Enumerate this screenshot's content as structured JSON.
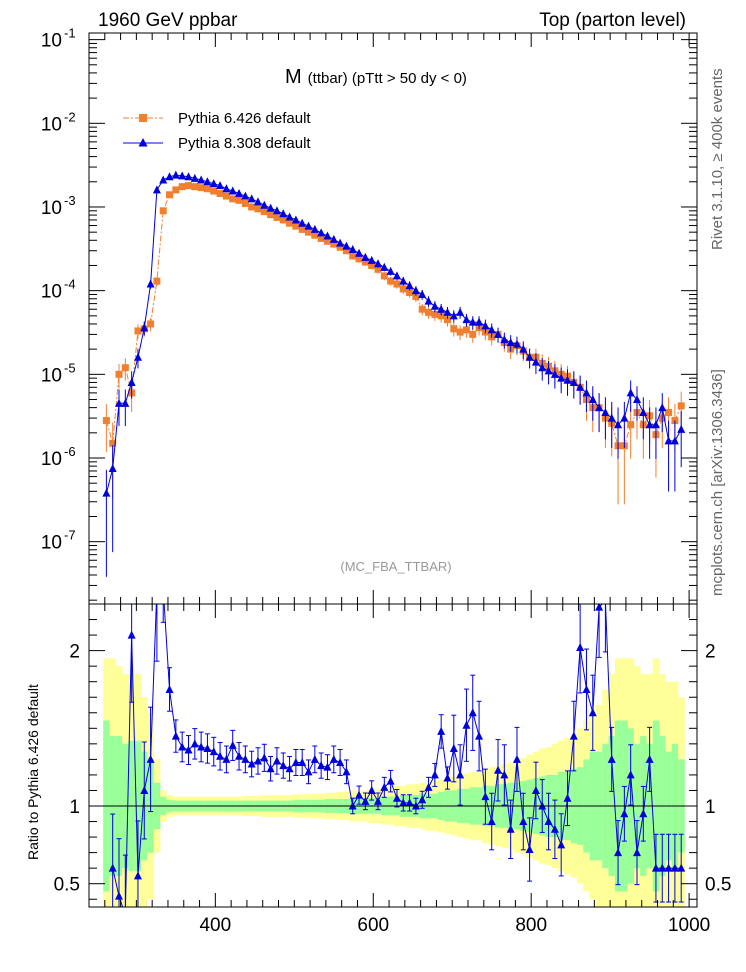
{
  "header": {
    "left": "1960 GeV ppbar",
    "right": "Top (parton level)"
  },
  "side": {
    "rivet": "Rivet 3.1.10, ≥ 400k events",
    "mcplots": "mcplots.cern.ch [arXiv:1306.3436]"
  },
  "chart_data": [
    {
      "type": "line",
      "title": "M (ttbar) (pTtt > 50 dy < 0)",
      "title_main": "M",
      "title_sub": "(ttbar) (pTtt > 50 dy < 0)",
      "watermark": "(MC_FBA_TTBAR)",
      "yscale": "log",
      "xlim": [
        240,
        1010
      ],
      "ylim": [
        1.8e-08,
        0.12
      ],
      "y_ticks": [
        {
          "value": 0.1,
          "label": "10^-1"
        },
        {
          "value": 0.01,
          "label": "10^-2"
        },
        {
          "value": 0.001,
          "label": "10^-3"
        },
        {
          "value": 0.0001,
          "label": "10^-4"
        },
        {
          "value": 1e-05,
          "label": "10^-5"
        },
        {
          "value": 1e-06,
          "label": "10^-6"
        },
        {
          "value": 1e-07,
          "label": "10^-7"
        }
      ],
      "legend": [
        "Pythia 6.426 default",
        "Pythia 8.308 default"
      ],
      "series": [
        {
          "name": "Pythia 6.426 default",
          "color": "#f08030",
          "marker": "square",
          "line": "dash-dot",
          "x": [
            262,
            270,
            278,
            286,
            294,
            302,
            310,
            318,
            326,
            334,
            342,
            350,
            358,
            366,
            374,
            382,
            390,
            398,
            406,
            414,
            422,
            430,
            438,
            446,
            454,
            462,
            470,
            478,
            486,
            494,
            502,
            510,
            518,
            526,
            534,
            542,
            550,
            558,
            566,
            574,
            582,
            590,
            598,
            606,
            614,
            622,
            630,
            638,
            646,
            654,
            662,
            670,
            678,
            686,
            694,
            702,
            710,
            718,
            726,
            734,
            742,
            750,
            758,
            766,
            774,
            782,
            790,
            798,
            806,
            814,
            822,
            830,
            838,
            846,
            854,
            862,
            870,
            878,
            886,
            894,
            902,
            910,
            918,
            926,
            934,
            942,
            950,
            958,
            966,
            974,
            982,
            990
          ],
          "y": [
            2.8e-06,
            1.5e-06,
            1e-05,
            1.2e-05,
            6e-06,
            3.3e-05,
            3.5e-05,
            4e-05,
            0.00013,
            0.0009,
            0.0014,
            0.0016,
            0.00175,
            0.0018,
            0.00175,
            0.0017,
            0.00165,
            0.00155,
            0.00145,
            0.00135,
            0.00125,
            0.0012,
            0.0011,
            0.001,
            0.00095,
            0.00088,
            0.00081,
            0.00075,
            0.0007,
            0.00064,
            0.00059,
            0.00054,
            0.0005,
            0.00046,
            0.00042,
            0.00039,
            0.00036,
            0.00033,
            0.0003,
            0.00026,
            0.00024,
            0.00022,
            0.0002,
            0.00018,
            0.00015,
            0.00013,
            0.00012,
            0.000105,
            9.5e-05,
            8.5e-05,
            6e-05,
            5.5e-05,
            5.2e-05,
            5e-05,
            4.5e-05,
            3.5e-05,
            3.2e-05,
            3.4e-05,
            3e-05,
            3.6e-05,
            3.2e-05,
            2.8e-05,
            3e-05,
            2.4e-05,
            2e-05,
            2.2e-05,
            1.9e-05,
            1.6e-05,
            1.6e-05,
            1.35e-05,
            1.25e-05,
            1.1e-05,
            1e-05,
            9.5e-06,
            8e-06,
            7e-06,
            5e-06,
            4e-06,
            4e-06,
            3e-06,
            2.6e-06,
            1.4e-06,
            1.4e-06,
            2.5e-06,
            3.5e-06,
            2.5e-06,
            3.2e-06,
            1.9e-06,
            3e-06,
            3.5e-06,
            2.8e-06,
            4.2e-06
          ]
        },
        {
          "name": "Pythia 8.308 default",
          "color": "#0000dd",
          "marker": "triangle",
          "line": "solid",
          "x": [
            262,
            270,
            278,
            286,
            294,
            302,
            310,
            318,
            326,
            334,
            342,
            350,
            358,
            366,
            374,
            382,
            390,
            398,
            406,
            414,
            422,
            430,
            438,
            446,
            454,
            462,
            470,
            478,
            486,
            494,
            502,
            510,
            518,
            526,
            534,
            542,
            550,
            558,
            566,
            574,
            582,
            590,
            598,
            606,
            614,
            622,
            630,
            638,
            646,
            654,
            662,
            670,
            678,
            686,
            694,
            702,
            710,
            718,
            726,
            734,
            742,
            750,
            758,
            766,
            774,
            782,
            790,
            798,
            806,
            814,
            822,
            830,
            838,
            846,
            854,
            862,
            870,
            878,
            886,
            894,
            902,
            910,
            918,
            926,
            934,
            942,
            950,
            958,
            966,
            974,
            982,
            990
          ],
          "y": [
            3.8e-07,
            7.5e-07,
            4.5e-06,
            4.5e-06,
            8e-06,
            1.6e-05,
            3.6e-05,
            0.00012,
            0.0016,
            0.0021,
            0.0023,
            0.0024,
            0.00235,
            0.0023,
            0.0022,
            0.0021,
            0.002,
            0.0019,
            0.0018,
            0.00165,
            0.00155,
            0.00145,
            0.00135,
            0.00125,
            0.00115,
            0.00105,
            0.00097,
            0.0009,
            0.00083,
            0.00076,
            0.0007,
            0.00064,
            0.00059,
            0.00054,
            0.00049,
            0.00045,
            0.00041,
            0.00037,
            0.00034,
            0.00031,
            0.00028,
            0.00025,
            0.00023,
            0.00021,
            0.00019,
            0.00017,
            0.00015,
            0.00013,
            0.000115,
            0.0001,
            9e-05,
            7.5e-05,
            6.5e-05,
            6e-05,
            5.5e-05,
            5e-05,
            5.5e-05,
            4.5e-05,
            4.2e-05,
            4.2e-05,
            3.8e-05,
            3.4e-05,
            3e-05,
            2.6e-05,
            2.4e-05,
            2.3e-05,
            2e-05,
            1.6e-05,
            1.4e-05,
            1.2e-05,
            1.1e-05,
            1e-05,
            9e-06,
            8.5e-06,
            8e-06,
            7e-06,
            6e-06,
            5e-06,
            4e-06,
            3.5e-06,
            3e-06,
            2.5e-06,
            3e-06,
            6e-06,
            5e-06,
            3.5e-06,
            2.5e-06,
            2.5e-06,
            4e-06,
            1.6e-06,
            1.6e-06,
            2.2e-06
          ]
        }
      ]
    },
    {
      "type": "line",
      "title": "Ratio to Pythia 6.426 default",
      "ylabel": "Ratio to Pythia 6.426 default",
      "xlim": [
        240,
        1010
      ],
      "ylim": [
        0.35,
        2.3
      ],
      "x_ticks": [
        400,
        600,
        800,
        1000
      ],
      "y_ticks": [
        0.5,
        1,
        2
      ],
      "bands": {
        "x": [
          262,
          270,
          278,
          286,
          294,
          302,
          310,
          318,
          326,
          334,
          342,
          350,
          358,
          366,
          374,
          382,
          390,
          398,
          406,
          414,
          422,
          430,
          438,
          446,
          454,
          462,
          470,
          478,
          486,
          494,
          502,
          510,
          518,
          526,
          534,
          542,
          550,
          558,
          566,
          574,
          582,
          590,
          598,
          606,
          614,
          622,
          630,
          638,
          646,
          654,
          662,
          670,
          678,
          686,
          694,
          702,
          710,
          718,
          726,
          734,
          742,
          750,
          758,
          766,
          774,
          782,
          790,
          798,
          806,
          814,
          822,
          830,
          838,
          846,
          854,
          862,
          870,
          878,
          886,
          894,
          902,
          910,
          918,
          926,
          934,
          942,
          950,
          958,
          966,
          974,
          982,
          990
        ],
        "inner": [
          0.55,
          0.45,
          0.45,
          0.4,
          0.42,
          0.42,
          0.35,
          0.3,
          0.15,
          0.06,
          0.04,
          0.035,
          0.035,
          0.035,
          0.035,
          0.035,
          0.035,
          0.035,
          0.035,
          0.035,
          0.035,
          0.035,
          0.035,
          0.035,
          0.035,
          0.035,
          0.035,
          0.035,
          0.035,
          0.035,
          0.04,
          0.04,
          0.04,
          0.04,
          0.04,
          0.045,
          0.045,
          0.045,
          0.045,
          0.05,
          0.05,
          0.05,
          0.05,
          0.05,
          0.06,
          0.06,
          0.06,
          0.07,
          0.07,
          0.07,
          0.08,
          0.08,
          0.08,
          0.09,
          0.1,
          0.1,
          0.11,
          0.11,
          0.12,
          0.12,
          0.13,
          0.13,
          0.14,
          0.14,
          0.15,
          0.15,
          0.16,
          0.17,
          0.18,
          0.19,
          0.2,
          0.2,
          0.22,
          0.22,
          0.24,
          0.25,
          0.3,
          0.35,
          0.35,
          0.4,
          0.45,
          0.55,
          0.55,
          0.5,
          0.4,
          0.45,
          0.4,
          0.55,
          0.45,
          0.35,
          0.4,
          0.3
        ],
        "outer": [
          0.95,
          0.95,
          0.9,
          0.85,
          0.85,
          0.85,
          0.7,
          0.6,
          0.3,
          0.1,
          0.07,
          0.06,
          0.06,
          0.06,
          0.06,
          0.06,
          0.06,
          0.06,
          0.06,
          0.06,
          0.06,
          0.06,
          0.065,
          0.065,
          0.065,
          0.07,
          0.07,
          0.07,
          0.07,
          0.07,
          0.075,
          0.075,
          0.08,
          0.08,
          0.08,
          0.085,
          0.085,
          0.09,
          0.09,
          0.1,
          0.1,
          0.1,
          0.11,
          0.11,
          0.12,
          0.12,
          0.13,
          0.13,
          0.14,
          0.14,
          0.15,
          0.16,
          0.16,
          0.17,
          0.18,
          0.19,
          0.2,
          0.21,
          0.22,
          0.22,
          0.24,
          0.25,
          0.26,
          0.27,
          0.28,
          0.3,
          0.31,
          0.33,
          0.35,
          0.37,
          0.38,
          0.4,
          0.42,
          0.44,
          0.46,
          0.5,
          0.55,
          0.6,
          0.65,
          0.75,
          0.85,
          0.95,
          0.95,
          0.95,
          0.9,
          0.85,
          0.85,
          0.95,
          0.85,
          0.8,
          0.8,
          0.7
        ]
      },
      "series": [
        {
          "name": "Pythia 8.308 default",
          "color": "#0000dd",
          "x": [
            270,
            278,
            286,
            294,
            302,
            310,
            318,
            326,
            334,
            342,
            350,
            358,
            366,
            374,
            382,
            390,
            398,
            406,
            414,
            422,
            430,
            438,
            446,
            454,
            462,
            470,
            478,
            486,
            494,
            502,
            510,
            518,
            526,
            534,
            542,
            550,
            558,
            566,
            574,
            582,
            590,
            598,
            606,
            614,
            622,
            630,
            638,
            646,
            654,
            662,
            670,
            678,
            686,
            694,
            702,
            710,
            718,
            726,
            734,
            742,
            750,
            758,
            766,
            774,
            782,
            790,
            798,
            806,
            814,
            822,
            830,
            838,
            846,
            854,
            862,
            870,
            878,
            886,
            894,
            902,
            910,
            918,
            926,
            934,
            942,
            950,
            958,
            966,
            974,
            982,
            990
          ],
          "y": [
            0.6,
            0.42,
            0.3,
            2.1,
            0.55,
            1.1,
            1.3,
            2.4,
            2.4,
            1.75,
            1.45,
            1.38,
            1.36,
            1.4,
            1.38,
            1.37,
            1.35,
            1.32,
            1.3,
            1.39,
            1.32,
            1.3,
            1.27,
            1.29,
            1.31,
            1.24,
            1.29,
            1.26,
            1.24,
            1.28,
            1.28,
            1.22,
            1.3,
            1.26,
            1.25,
            1.3,
            1.28,
            1.22,
            1.0,
            1.07,
            1.03,
            1.1,
            1.03,
            1.12,
            1.16,
            1.05,
            1.02,
            1.02,
            1.0,
            1.04,
            1.12,
            1.2,
            1.48,
            1.18,
            1.37,
            1.2,
            1.52,
            1.6,
            1.45,
            1.06,
            0.9,
            1.23,
            1.2,
            0.85,
            1.3,
            0.9,
            0.72,
            1.1,
            1.0,
            0.9,
            0.85,
            0.75,
            1.05,
            1.45,
            2.02,
            1.75,
            1.6,
            2.28,
            2.32,
            1.3,
            0.7,
            0.95,
            1.2,
            0.7,
            0.95,
            1.3,
            0.6,
            0.6,
            0.6,
            0.6,
            0.6
          ]
        }
      ]
    }
  ]
}
